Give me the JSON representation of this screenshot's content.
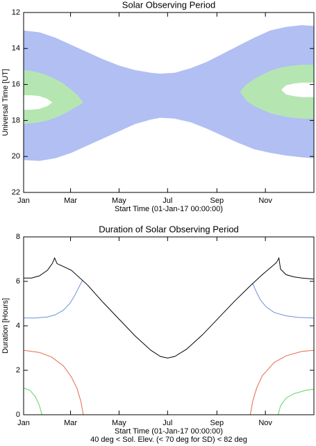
{
  "chart_data": [
    {
      "type": "range",
      "title": "Solar Observing Period",
      "ylabel": "Universal Time [UT]",
      "xlabel": "Start Time (01-Jan-17 00:00:00)",
      "xlim": [
        0,
        365
      ],
      "xticks": [
        {
          "value": 0,
          "label": "Jan"
        },
        {
          "value": 59,
          "label": "Mar"
        },
        {
          "value": 120,
          "label": "May"
        },
        {
          "value": 181,
          "label": "Jul"
        },
        {
          "value": 243,
          "label": "Sep"
        },
        {
          "value": 304,
          "label": "Nov"
        }
      ],
      "ylim": [
        12,
        22
      ],
      "y_inverted": true,
      "yticks": [
        12,
        14,
        16,
        18,
        20,
        22
      ],
      "bands": [
        {
          "color": "#b1bff3",
          "x": [
            0,
            20,
            40,
            60,
            80,
            100,
            120,
            140,
            160,
            172,
            190,
            210,
            230,
            250,
            270,
            290,
            310,
            330,
            350,
            365
          ],
          "start": [
            13.0,
            13.1,
            13.4,
            13.8,
            14.2,
            14.6,
            14.95,
            15.2,
            15.35,
            15.4,
            15.35,
            15.1,
            14.75,
            14.3,
            13.85,
            13.4,
            13.0,
            12.8,
            12.7,
            12.75
          ],
          "end": [
            20.2,
            20.25,
            20.1,
            19.8,
            19.4,
            19.0,
            18.6,
            18.2,
            17.95,
            17.85,
            17.9,
            18.1,
            18.45,
            18.85,
            19.25,
            19.6,
            19.8,
            19.95,
            20.05,
            20.1
          ]
        },
        {
          "color": "#b5e6b2",
          "x": [
            0,
            10,
            20,
            30,
            40,
            50,
            60,
            68,
            75
          ],
          "start": [
            15.2,
            15.25,
            15.35,
            15.5,
            15.7,
            15.95,
            16.3,
            16.6,
            17.0
          ],
          "end": [
            18.2,
            18.15,
            18.1,
            18.0,
            17.85,
            17.65,
            17.4,
            17.2,
            17.0
          ]
        },
        {
          "color": "#ffffff",
          "x": [
            0,
            10,
            20,
            30,
            36
          ],
          "start": [
            16.6,
            16.6,
            16.65,
            16.8,
            17.0
          ],
          "end": [
            17.4,
            17.4,
            17.35,
            17.2,
            17.0
          ]
        },
        {
          "color": "#b5e6b2",
          "x": [
            272,
            280,
            290,
            300,
            310,
            320,
            330,
            340,
            350,
            365
          ],
          "start": [
            16.4,
            16.0,
            15.7,
            15.45,
            15.25,
            15.1,
            15.0,
            14.95,
            14.9,
            14.9
          ],
          "end": [
            16.4,
            16.9,
            17.2,
            17.4,
            17.6,
            17.7,
            17.8,
            17.85,
            17.9,
            17.9
          ]
        },
        {
          "color": "#ffffff",
          "x": [
            324,
            330,
            340,
            350,
            365
          ],
          "start": [
            16.3,
            16.05,
            15.95,
            15.9,
            15.9
          ],
          "end": [
            16.3,
            16.55,
            16.65,
            16.7,
            16.7
          ]
        }
      ]
    },
    {
      "type": "line",
      "title": "Duration of Solar Observing Period",
      "ylabel": "Duration [Hours]",
      "xlabel": "Start Time (01-Jan-17 00:00:00)",
      "note": "40 deg < Sol. Elev. (< 70 deg for SD) < 82 deg",
      "xlim": [
        0,
        365
      ],
      "xticks": [
        {
          "value": 0,
          "label": "Jan"
        },
        {
          "value": 59,
          "label": "Mar"
        },
        {
          "value": 120,
          "label": "May"
        },
        {
          "value": 181,
          "label": "Jul"
        },
        {
          "value": 243,
          "label": "Sep"
        },
        {
          "value": 304,
          "label": "Nov"
        }
      ],
      "ylim": [
        0,
        8
      ],
      "yticks": [
        0,
        2,
        4,
        6,
        8
      ],
      "series": [
        {
          "color": "#5fd35f",
          "x": [
            0,
            8,
            15,
            20,
            23,
            320,
            323,
            330,
            340,
            355,
            365
          ],
          "values": [
            1.2,
            1.1,
            0.8,
            0.4,
            0,
            0,
            0.4,
            0.75,
            0.95,
            1.1,
            1.15
          ]
        },
        {
          "color": "#e8694b",
          "x": [
            0,
            20,
            35,
            50,
            60,
            67,
            72,
            75,
            285,
            288,
            293,
            300,
            315,
            330,
            350,
            365
          ],
          "values": [
            2.9,
            2.8,
            2.6,
            2.2,
            1.7,
            1.2,
            0.6,
            0,
            0,
            0.6,
            1.2,
            1.75,
            2.35,
            2.65,
            2.85,
            2.9
          ]
        },
        {
          "color": "#6a8fdc",
          "x": [
            0,
            15,
            30,
            40,
            50,
            58,
            64,
            69,
            74,
            180,
            288,
            293,
            298,
            305,
            315,
            330,
            345,
            365
          ],
          "values": [
            4.35,
            4.35,
            4.4,
            4.5,
            4.7,
            5.0,
            5.35,
            5.7,
            6.05,
            null,
            5.9,
            5.5,
            5.15,
            4.85,
            4.6,
            4.45,
            4.38,
            4.35
          ]
        },
        {
          "color": "#000000",
          "x": [
            0,
            10,
            20,
            30,
            36,
            39,
            42,
            60,
            80,
            100,
            120,
            140,
            160,
            172,
            181,
            190,
            205,
            225,
            245,
            265,
            285,
            300,
            310,
            318,
            321,
            323,
            330,
            340,
            350,
            365
          ],
          "values": [
            6.15,
            6.15,
            6.25,
            6.5,
            6.8,
            7.05,
            6.8,
            6.5,
            5.85,
            5.05,
            4.3,
            3.55,
            2.9,
            2.62,
            2.55,
            2.62,
            2.95,
            3.6,
            4.35,
            5.1,
            5.8,
            6.3,
            6.6,
            6.85,
            7.05,
            6.55,
            6.3,
            6.2,
            6.15,
            6.1
          ]
        }
      ]
    }
  ]
}
